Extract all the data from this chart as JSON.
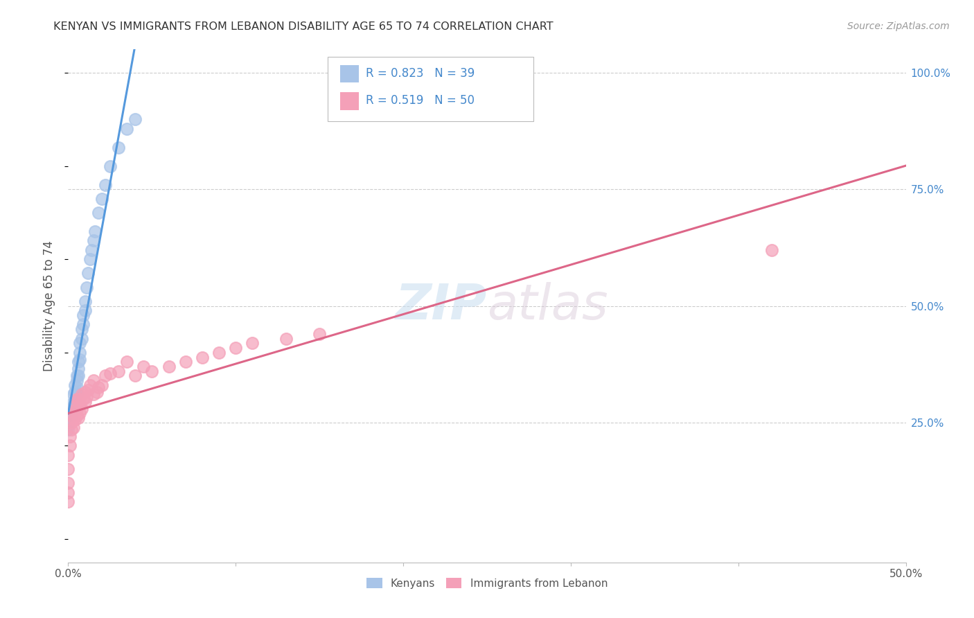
{
  "title": "KENYAN VS IMMIGRANTS FROM LEBANON DISABILITY AGE 65 TO 74 CORRELATION CHART",
  "source": "Source: ZipAtlas.com",
  "ylabel": "Disability Age 65 to 74",
  "xlim": [
    0.0,
    0.5
  ],
  "ylim": [
    -0.05,
    1.05
  ],
  "kenyan_R": 0.823,
  "kenyan_N": 39,
  "lebanon_R": 0.519,
  "lebanon_N": 50,
  "kenyan_color": "#a8c4e8",
  "lebanon_color": "#f4a0b8",
  "kenyan_line_color": "#5599dd",
  "lebanon_line_color": "#dd6688",
  "legend_R_color": "#4488cc",
  "watermark_color": "#ddeeff",
  "kenyan_x": [
    0.0,
    0.0,
    0.0,
    0.002,
    0.002,
    0.003,
    0.003,
    0.003,
    0.004,
    0.004,
    0.005,
    0.005,
    0.005,
    0.005,
    0.006,
    0.006,
    0.006,
    0.007,
    0.007,
    0.007,
    0.008,
    0.008,
    0.009,
    0.009,
    0.01,
    0.01,
    0.011,
    0.012,
    0.013,
    0.014,
    0.015,
    0.016,
    0.018,
    0.02,
    0.022,
    0.025,
    0.03,
    0.035,
    0.04
  ],
  "kenyan_y": [
    0.255,
    0.245,
    0.235,
    0.28,
    0.265,
    0.31,
    0.295,
    0.285,
    0.33,
    0.315,
    0.35,
    0.34,
    0.325,
    0.31,
    0.38,
    0.365,
    0.35,
    0.42,
    0.4,
    0.385,
    0.45,
    0.43,
    0.48,
    0.46,
    0.51,
    0.49,
    0.54,
    0.57,
    0.6,
    0.62,
    0.64,
    0.66,
    0.7,
    0.73,
    0.76,
    0.8,
    0.84,
    0.88,
    0.9
  ],
  "lebanon_x": [
    0.0,
    0.0,
    0.0,
    0.0,
    0.0,
    0.001,
    0.001,
    0.002,
    0.002,
    0.003,
    0.003,
    0.003,
    0.004,
    0.004,
    0.005,
    0.005,
    0.005,
    0.006,
    0.006,
    0.007,
    0.007,
    0.008,
    0.008,
    0.009,
    0.01,
    0.01,
    0.011,
    0.012,
    0.013,
    0.015,
    0.015,
    0.017,
    0.018,
    0.02,
    0.022,
    0.025,
    0.03,
    0.035,
    0.04,
    0.045,
    0.05,
    0.06,
    0.07,
    0.08,
    0.09,
    0.1,
    0.11,
    0.13,
    0.15,
    0.42
  ],
  "lebanon_y": [
    0.08,
    0.1,
    0.12,
    0.15,
    0.18,
    0.2,
    0.22,
    0.235,
    0.25,
    0.24,
    0.26,
    0.275,
    0.255,
    0.285,
    0.265,
    0.28,
    0.3,
    0.26,
    0.3,
    0.27,
    0.29,
    0.28,
    0.31,
    0.3,
    0.295,
    0.315,
    0.305,
    0.32,
    0.33,
    0.31,
    0.34,
    0.315,
    0.325,
    0.33,
    0.35,
    0.355,
    0.36,
    0.38,
    0.35,
    0.37,
    0.36,
    0.37,
    0.38,
    0.39,
    0.4,
    0.41,
    0.42,
    0.43,
    0.44,
    0.62
  ]
}
